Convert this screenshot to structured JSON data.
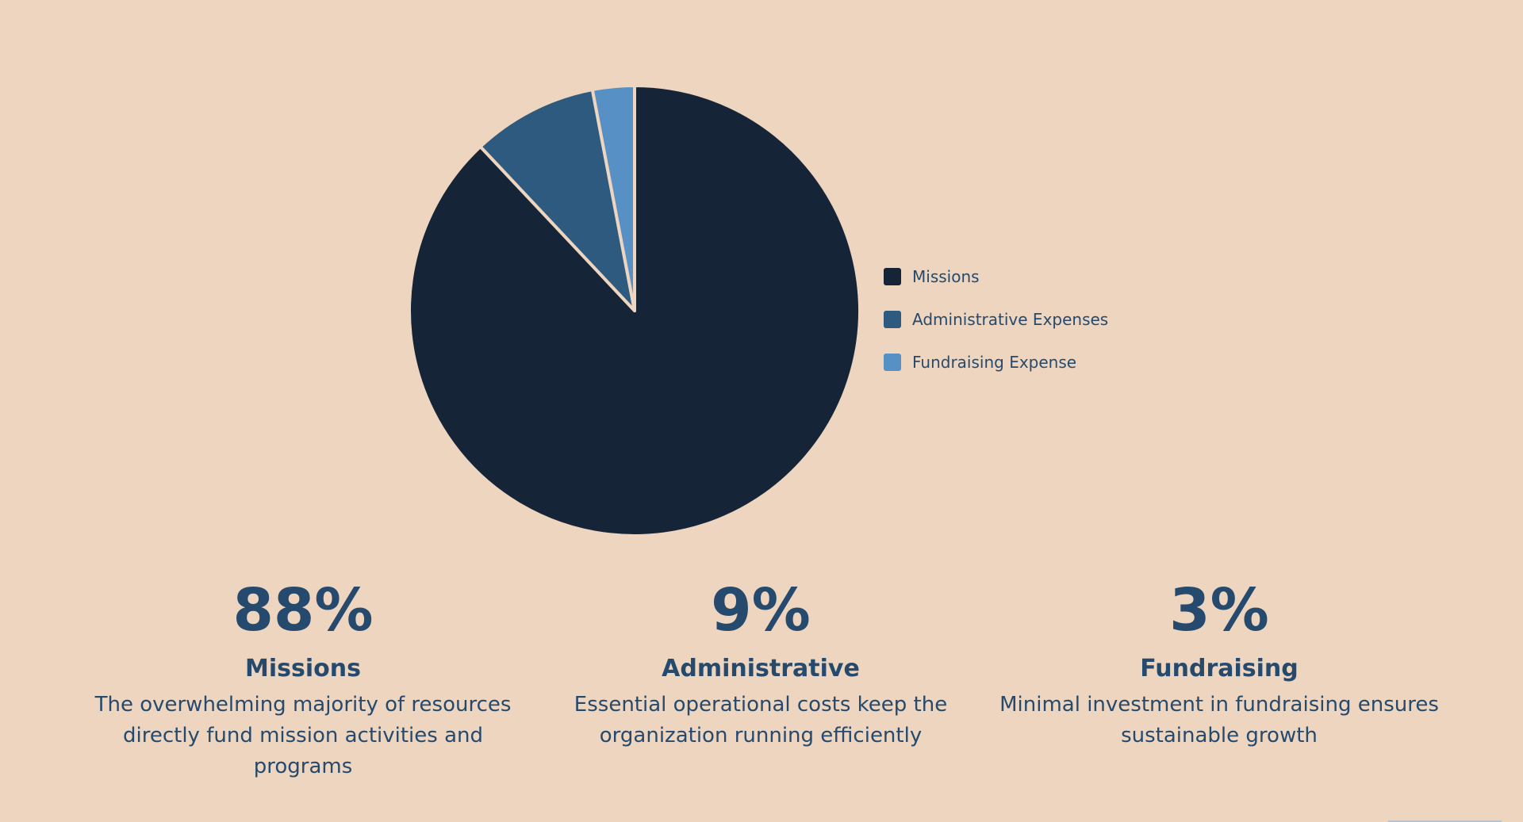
{
  "chart_data": {
    "type": "pie",
    "categories": [
      "Missions",
      "Administrative Expenses",
      "Fundraising Expense"
    ],
    "values": [
      88,
      9,
      3
    ],
    "colors": [
      "#152537",
      "#2e5a80",
      "#5790c5"
    ],
    "legend_position": "right",
    "start_angle": "top, clockwise"
  },
  "stats": [
    {
      "value": "88%",
      "title": "Missions",
      "description": "The overwhelming majority of resources directly fund mission activities and programs"
    },
    {
      "value": "9%",
      "title": "Administrative",
      "description": "Essential operational costs keep the organization running efficiently"
    },
    {
      "value": "3%",
      "title": "Fundraising",
      "description": "Minimal investment in fundraising ensures sustainable growth"
    }
  ]
}
